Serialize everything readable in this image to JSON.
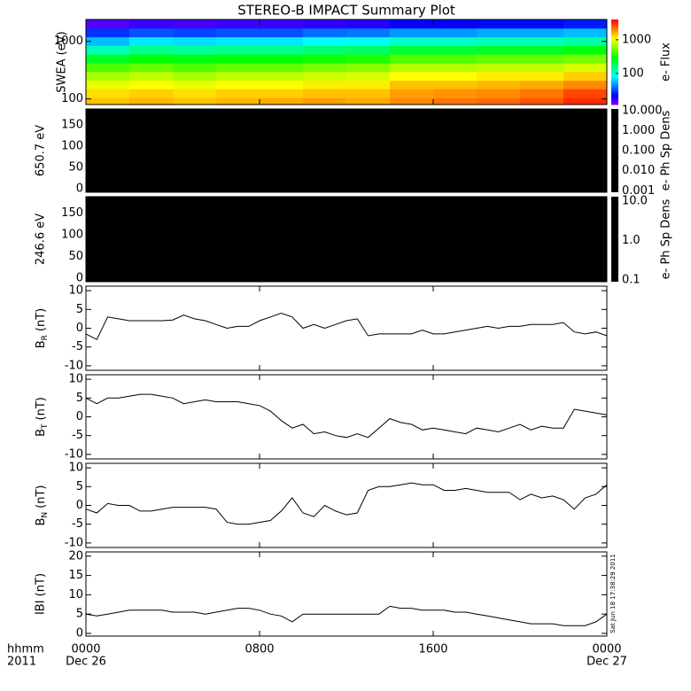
{
  "title": "STEREO-B IMPACT Summary Plot",
  "timestamp": "Sat Jun 18 17:38:29 2011",
  "x_axis": {
    "xlim": [
      0,
      24
    ],
    "label": "hhmm",
    "year": "2011",
    "xticks": [
      {
        "value": 0,
        "label": "0000"
      },
      {
        "value": 8,
        "label": "0800"
      },
      {
        "value": 16,
        "label": "1600"
      },
      {
        "value": 24,
        "label": "0000"
      }
    ],
    "date_ticks": [
      {
        "value": 0,
        "label": "Dec 26"
      },
      {
        "value": 24,
        "label": "Dec 27"
      }
    ]
  },
  "chart_data": [
    {
      "type": "spectrogram",
      "ylabel": "SWEA (eV)",
      "log": true,
      "ylim": [
        80,
        2400
      ],
      "yticks": [
        100,
        1000
      ],
      "time_edges": [
        0,
        2,
        4,
        6,
        8,
        10,
        12,
        14,
        16,
        18,
        20,
        22,
        24
      ],
      "energy_edges": [
        80,
        105,
        150,
        210,
        300,
        420,
        600,
        850,
        1200,
        1700,
        2400
      ],
      "z": [
        [
          1500,
          1600,
          1500,
          1600,
          1700,
          1800,
          1700,
          2000,
          2200,
          2300,
          2600,
          3200
        ],
        [
          1300,
          1400,
          1300,
          1400,
          1400,
          1500,
          1500,
          1800,
          1900,
          2000,
          2200,
          2800
        ],
        [
          1000,
          1100,
          1000,
          1100,
          1100,
          1200,
          1200,
          1500,
          1500,
          1600,
          1700,
          2000
        ],
        [
          700,
          800,
          700,
          800,
          800,
          850,
          900,
          1100,
          1100,
          1200,
          1200,
          1400
        ],
        [
          450,
          500,
          450,
          500,
          500,
          550,
          600,
          750,
          750,
          800,
          800,
          900
        ],
        [
          250,
          300,
          280,
          300,
          300,
          330,
          350,
          450,
          450,
          500,
          500,
          550
        ],
        [
          120,
          150,
          140,
          150,
          150,
          170,
          180,
          230,
          230,
          250,
          250,
          280
        ],
        [
          60,
          75,
          70,
          75,
          75,
          85,
          90,
          110,
          110,
          120,
          120,
          130
        ],
        [
          30,
          35,
          33,
          35,
          35,
          40,
          42,
          50,
          50,
          55,
          55,
          60
        ],
        [
          15,
          17,
          16,
          17,
          17,
          18,
          19,
          22,
          22,
          24,
          24,
          26
        ]
      ],
      "colorbar": {
        "label": "e- Flux",
        "log": true,
        "colormap": "rainbow",
        "lim": [
          12,
          4000
        ],
        "ticks": [
          100,
          1000
        ]
      }
    },
    {
      "type": "pitch_angle",
      "ylabel": "650.7 eV",
      "ylim": [
        -8,
        188
      ],
      "yticks": [
        0,
        50,
        100,
        150
      ],
      "background": "#000000",
      "colorbar": {
        "label": "e- Ph Sp Dens",
        "log": true,
        "color": "#000000",
        "lim": [
          0.00085,
          12
        ],
        "ticks": [
          {
            "value": 10,
            "label": "10.000"
          },
          {
            "value": 1,
            "label": "1.000"
          },
          {
            "value": 0.1,
            "label": "0.100"
          },
          {
            "value": 0.01,
            "label": "0.010"
          },
          {
            "value": 0.001,
            "label": "0.001"
          }
        ]
      }
    },
    {
      "type": "pitch_angle",
      "ylabel": "246.6 eV",
      "ylim": [
        -8,
        188
      ],
      "yticks": [
        0,
        50,
        100,
        150
      ],
      "background": "#000000",
      "colorbar": {
        "label": "e- Ph Sp Dens",
        "log": true,
        "color": "#000000",
        "lim": [
          0.09,
          13
        ],
        "ticks": [
          {
            "value": 10,
            "label": "10.0"
          },
          {
            "value": 1,
            "label": "1.0"
          },
          0.1
        ]
      }
    },
    {
      "type": "line",
      "ylabel": "B",
      "ylabel_sub": "R",
      "ylabel_unit": "(nT)",
      "color": "#000000",
      "ylim": [
        -11.2,
        11.2
      ],
      "yticks": [
        -10,
        -5,
        0,
        5,
        10
      ],
      "x": [
        0,
        0.5,
        1,
        1.5,
        2,
        2.5,
        3,
        3.5,
        4,
        4.5,
        5,
        5.5,
        6,
        6.5,
        7,
        7.5,
        8,
        8.5,
        9,
        9.5,
        10,
        10.5,
        11,
        11.5,
        12,
        12.5,
        13,
        13.5,
        14,
        14.5,
        15,
        15.5,
        16,
        16.5,
        17,
        17.5,
        18,
        18.5,
        19,
        19.5,
        20,
        20.5,
        21,
        21.5,
        22,
        22.5,
        23,
        23.5,
        24
      ],
      "values": [
        -1.5,
        -3,
        3,
        2.5,
        2,
        2,
        2,
        2,
        2.2,
        3.5,
        2.5,
        2,
        1,
        0,
        0.5,
        0.5,
        2,
        3,
        4,
        3,
        0,
        1,
        0,
        1,
        2,
        2.5,
        -2,
        -1.5,
        -1.5,
        -1.5,
        -1.5,
        -0.5,
        -1.5,
        -1.5,
        -1,
        -0.5,
        0,
        0.5,
        0,
        0.5,
        0.5,
        1,
        1,
        1,
        1.5,
        -1,
        -1.5,
        -1,
        -2
      ]
    },
    {
      "type": "line",
      "ylabel": "B",
      "ylabel_sub": "T",
      "ylabel_unit": "(nT)",
      "color": "#000000",
      "ylim": [
        -11.2,
        11.2
      ],
      "yticks": [
        -10,
        -5,
        0,
        5,
        10
      ],
      "x": [
        0,
        0.5,
        1,
        1.5,
        2,
        2.5,
        3,
        3.5,
        4,
        4.5,
        5,
        5.5,
        6,
        6.5,
        7,
        7.5,
        8,
        8.5,
        9,
        9.5,
        10,
        10.5,
        11,
        11.5,
        12,
        12.5,
        13,
        13.5,
        14,
        14.5,
        15,
        15.5,
        16,
        16.5,
        17,
        17.5,
        18,
        18.5,
        19,
        19.5,
        20,
        20.5,
        21,
        21.5,
        22,
        22.5,
        23,
        23.5,
        24
      ],
      "values": [
        5,
        3.5,
        5,
        5,
        5.5,
        6,
        6,
        5.5,
        5,
        3.5,
        4,
        4.5,
        4,
        4,
        4,
        3.5,
        3,
        1.5,
        -1,
        -3,
        -2,
        -4.5,
        -4,
        -5,
        -5.5,
        -4.5,
        -5.5,
        -3,
        -0.5,
        -1.5,
        -2,
        -3.5,
        -3,
        -3.5,
        -4,
        -4.5,
        -3,
        -3.5,
        -4,
        -3,
        -2,
        -3.5,
        -2.5,
        -3,
        -3,
        2,
        1.5,
        1,
        0.5
      ]
    },
    {
      "type": "line",
      "ylabel": "B",
      "ylabel_sub": "N",
      "ylabel_unit": "(nT)",
      "color": "#000000",
      "ylim": [
        -11.2,
        11.2
      ],
      "yticks": [
        -10,
        -5,
        0,
        5,
        10
      ],
      "x": [
        0,
        0.5,
        1,
        1.5,
        2,
        2.5,
        3,
        3.5,
        4,
        4.5,
        5,
        5.5,
        6,
        6.5,
        7,
        7.5,
        8,
        8.5,
        9,
        9.5,
        10,
        10.5,
        11,
        11.5,
        12,
        12.5,
        13,
        13.5,
        14,
        14.5,
        15,
        15.5,
        16,
        16.5,
        17,
        17.5,
        18,
        18.5,
        19,
        19.5,
        20,
        20.5,
        21,
        21.5,
        22,
        22.5,
        23,
        23.5,
        24
      ],
      "values": [
        -1,
        -2,
        0.5,
        0,
        0,
        -1.5,
        -1.5,
        -1,
        -0.5,
        -0.5,
        -0.5,
        -0.5,
        -1,
        -4.5,
        -5,
        -5,
        -4.5,
        -4,
        -1.5,
        2,
        -2,
        -3,
        0,
        -1.5,
        -2.5,
        -2,
        4,
        5,
        5,
        5.5,
        6,
        5.5,
        5.5,
        4,
        4,
        4.5,
        4,
        3.5,
        3.5,
        3.5,
        1.5,
        3,
        2,
        2.5,
        1.5,
        -1,
        2,
        3,
        5.5
      ]
    },
    {
      "type": "line",
      "ylabel": "IBI (nT)",
      "color": "#000000",
      "ylim": [
        -0.7,
        21.1
      ],
      "yticks": [
        0,
        5,
        10,
        15,
        20
      ],
      "x": [
        0,
        0.5,
        1,
        1.5,
        2,
        2.5,
        3,
        3.5,
        4,
        4.5,
        5,
        5.5,
        6,
        6.5,
        7,
        7.5,
        8,
        8.5,
        9,
        9.5,
        10,
        10.5,
        11,
        11.5,
        12,
        12.5,
        13,
        13.5,
        14,
        14.5,
        15,
        15.5,
        16,
        16.5,
        17,
        17.5,
        18,
        18.5,
        19,
        19.5,
        20,
        20.5,
        21,
        21.5,
        22,
        22.5,
        23,
        23.5,
        24
      ],
      "values": [
        5,
        4.5,
        5,
        5.5,
        6,
        6,
        6,
        6,
        5.5,
        5.5,
        5.5,
        5,
        5.5,
        6,
        6.5,
        6.5,
        6,
        5,
        4.5,
        3,
        5,
        5,
        5,
        5,
        5,
        5,
        5,
        5,
        7,
        6.5,
        6.5,
        6,
        6,
        6,
        5.5,
        5.5,
        5,
        4.5,
        4,
        3.5,
        3,
        2.5,
        2.5,
        2.5,
        2,
        2,
        2,
        3,
        5
      ]
    }
  ]
}
